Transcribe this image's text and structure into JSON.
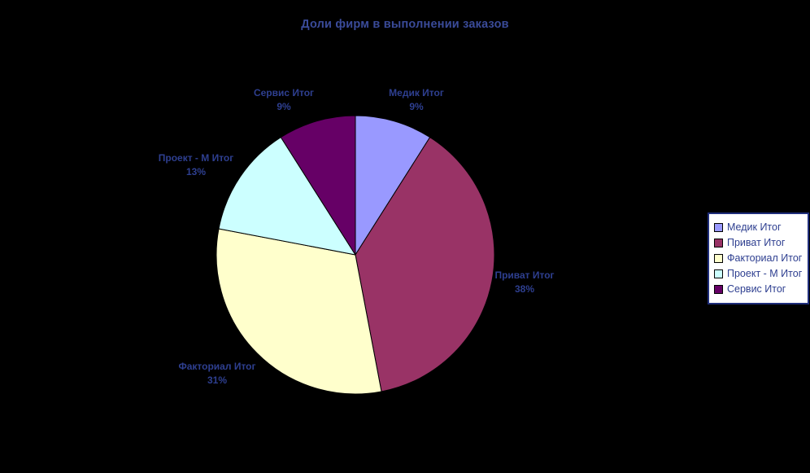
{
  "title": "Доли фирм в выполнении заказов",
  "background_color": "#000000",
  "title_color": "#3A4B99",
  "label_color": "#2E3F90",
  "chart_data": {
    "type": "pie",
    "title": "Доли фирм в выполнении заказов",
    "categories": [
      "Медик Итог",
      "Приват Итог",
      "Факториал Итог",
      "Проект - М Итог",
      "Сервис Итог"
    ],
    "values": [
      9,
      38,
      31,
      13,
      9
    ],
    "percent_labels": [
      "9%",
      "38%",
      "31%",
      "13%",
      "9%"
    ],
    "colors": [
      "#9999FF",
      "#993366",
      "#FFFFCC",
      "#CCFFFF",
      "#660066"
    ],
    "slice_border_color": "#000000",
    "start_angle_deg": 0,
    "direction": "clockwise",
    "legend_position": "right",
    "labels_position": "outside"
  },
  "legend": {
    "border_color": "#1E2D7A",
    "background": "#FFFFFF",
    "items": [
      {
        "label": "Медик Итог",
        "color": "#9999FF"
      },
      {
        "label": "Приват Итог",
        "color": "#993366"
      },
      {
        "label": "Факториал Итог",
        "color": "#FFFFCC"
      },
      {
        "label": "Проект - М Итог",
        "color": "#CCFFFF"
      },
      {
        "label": "Сервис Итог",
        "color": "#660066"
      }
    ]
  }
}
